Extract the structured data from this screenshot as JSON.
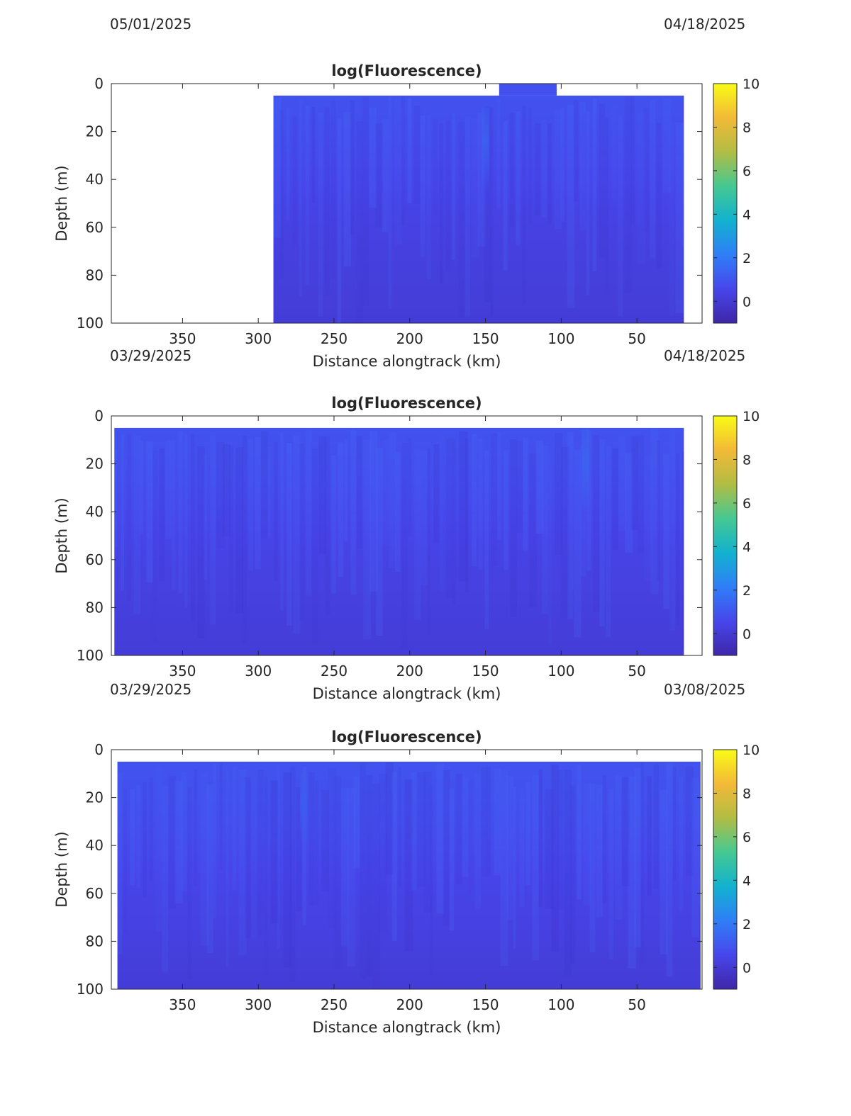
{
  "header_dates": [
    {
      "left": "05/01/2025",
      "right": "04/18/2025"
    },
    {
      "left": "03/29/2025",
      "right": "04/18/2025"
    },
    {
      "left": "03/29/2025",
      "right": "03/08/2025"
    }
  ],
  "colorbar": {
    "range": [
      -1,
      10
    ],
    "ticks": [
      0,
      2,
      4,
      6,
      8,
      10
    ],
    "colormap": "parula",
    "colors": [
      "#3e26a8",
      "#4746eb",
      "#2f7ef7",
      "#12b2cf",
      "#45c892",
      "#b1bd44",
      "#f3b937",
      "#f9fb15"
    ]
  },
  "chart_data": [
    {
      "type": "heatmap",
      "title": "log(Fluorescence)",
      "xlabel": "Distance alongtrack (km)",
      "ylabel": "Depth (m)",
      "xlim": [
        397,
        7
      ],
      "xreverse": true,
      "ylim": [
        0,
        100
      ],
      "yreverse": true,
      "xticks": [
        350,
        300,
        250,
        200,
        150,
        100,
        50
      ],
      "yticks": [
        0,
        20,
        40,
        60,
        80,
        100
      ],
      "data_extent": {
        "x": [
          290,
          19
        ],
        "depth": [
          5,
          100
        ]
      },
      "surface_patch": {
        "x": [
          141,
          103
        ],
        "depth": [
          0,
          5
        ]
      },
      "value_profile": {
        "depth": [
          5,
          30,
          60,
          100
        ],
        "value": [
          0.9,
          0.7,
          0.35,
          0.1
        ]
      },
      "highlights": [
        {
          "x": 150,
          "depth": [
            10,
            45
          ],
          "value": 1.3
        }
      ]
    },
    {
      "type": "heatmap",
      "title": "log(Fluorescence)",
      "xlabel": "Distance alongtrack (km)",
      "ylabel": "Depth (m)",
      "xlim": [
        397,
        7
      ],
      "xreverse": true,
      "ylim": [
        0,
        100
      ],
      "yreverse": true,
      "xticks": [
        350,
        300,
        250,
        200,
        150,
        100,
        50
      ],
      "yticks": [
        0,
        20,
        40,
        60,
        80,
        100
      ],
      "data_extent": {
        "x": [
          395,
          19
        ],
        "depth": [
          5,
          100
        ]
      },
      "value_profile": {
        "depth": [
          5,
          30,
          60,
          100
        ],
        "value": [
          0.9,
          0.75,
          0.4,
          0.1
        ]
      },
      "highlights": [
        {
          "x": 84,
          "depth": [
            5,
            40
          ],
          "value": 1.4
        }
      ]
    },
    {
      "type": "heatmap",
      "title": "log(Fluorescence)",
      "xlabel": "Distance alongtrack (km)",
      "ylabel": "Depth (m)",
      "xlim": [
        397,
        7
      ],
      "xreverse": true,
      "ylim": [
        0,
        100
      ],
      "yreverse": true,
      "xticks": [
        350,
        300,
        250,
        200,
        150,
        100,
        50
      ],
      "yticks": [
        0,
        20,
        40,
        60,
        80,
        100
      ],
      "data_extent": {
        "x": [
          393,
          8
        ],
        "depth": [
          5,
          100
        ]
      },
      "value_profile": {
        "depth": [
          5,
          30,
          60,
          100
        ],
        "value": [
          0.95,
          0.8,
          0.45,
          0.1
        ]
      },
      "highlights": [
        {
          "x": 270,
          "depth": [
            10,
            40
          ],
          "value": 1.2
        }
      ]
    }
  ]
}
